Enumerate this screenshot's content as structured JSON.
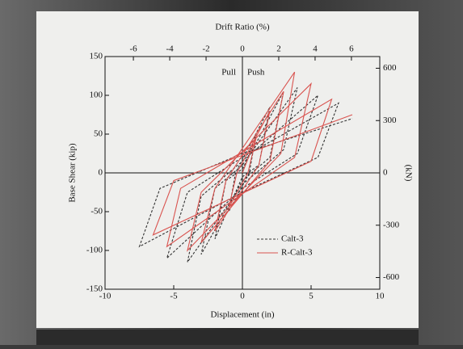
{
  "chart_data": {
    "type": "line",
    "xlabel": "Displacement (in)",
    "ylabel": "Base Shear (kip)",
    "x2label": "Drift Ratio (%)",
    "y2label": "(kN)",
    "annotations": [
      "Pull",
      "Push"
    ],
    "xlim": [
      -10,
      10
    ],
    "xticks": [
      -10,
      -5,
      0,
      5,
      10
    ],
    "ylim": [
      -150,
      150
    ],
    "yticks": [
      -150,
      -100,
      -50,
      0,
      50,
      100,
      150
    ],
    "x2lim": [
      -7.56,
      7.56
    ],
    "x2ticks": [
      -6,
      -4,
      -2,
      0,
      2,
      4,
      6
    ],
    "y2lim": [
      -667,
      667
    ],
    "y2ticks": [
      -600,
      -300,
      0,
      300,
      600
    ],
    "legend": "lower right",
    "series": [
      {
        "name": "Calt-3",
        "color": "#333333",
        "dash": true,
        "x": [
          0,
          1,
          0.5,
          -1,
          -0.5,
          2,
          1.2,
          0,
          -2,
          -1.2,
          0,
          3,
          2,
          0,
          -3,
          -2,
          0,
          4,
          3,
          0,
          -4,
          -3,
          0,
          5.5,
          4,
          0,
          -5.5,
          -4,
          0,
          7,
          5.5,
          0,
          -7.5,
          -6,
          0,
          8
        ],
        "values": [
          0,
          50,
          0,
          -50,
          0,
          85,
          10,
          -5,
          -85,
          -10,
          5,
          105,
          20,
          -10,
          -105,
          -20,
          10,
          110,
          30,
          -15,
          -115,
          -30,
          15,
          100,
          25,
          -20,
          -110,
          -25,
          20,
          90,
          20,
          -25,
          -95,
          -20,
          25,
          70
        ]
      },
      {
        "name": "R-Calt-3",
        "color": "#d9534f",
        "dash": false,
        "x": [
          0,
          1,
          0.4,
          -1,
          -0.4,
          2,
          1.2,
          -2,
          -1.2,
          3,
          2,
          -3,
          -2,
          3.8,
          2.8,
          -4,
          -3,
          5,
          3.8,
          -5.5,
          -4.5,
          6.5,
          5,
          -6.5,
          -5,
          8
        ],
        "values": [
          0,
          45,
          0,
          -45,
          0,
          80,
          10,
          -75,
          -10,
          105,
          15,
          -90,
          -20,
          130,
          25,
          -100,
          -25,
          115,
          20,
          -95,
          -20,
          95,
          15,
          -80,
          -10,
          75
        ]
      }
    ]
  }
}
